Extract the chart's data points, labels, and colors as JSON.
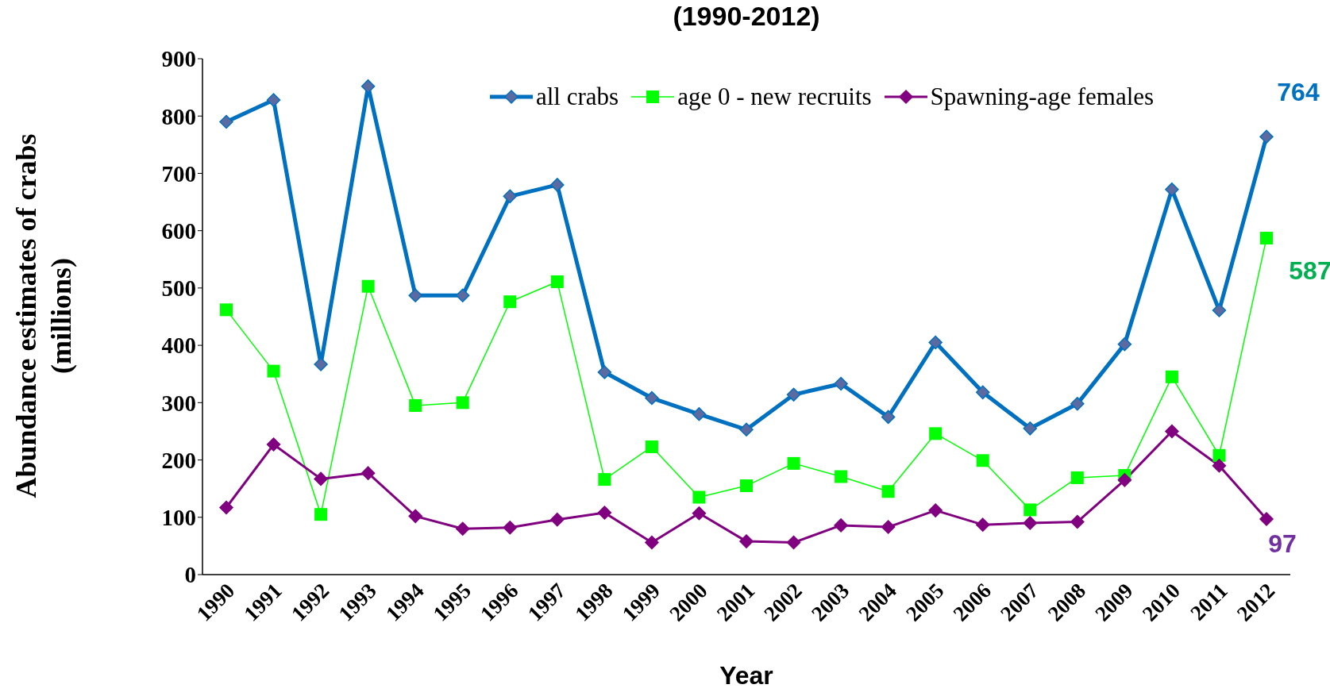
{
  "chart_data": {
    "type": "line",
    "title": "(1990-2012)",
    "xlabel": "Year",
    "ylabel": "Abundance estimates of  crabs\n(millions)",
    "categories": [
      "1990",
      "1991",
      "1992",
      "1993",
      "1994",
      "1995",
      "1996",
      "1997",
      "1998",
      "1999",
      "2000",
      "2001",
      "2002",
      "2003",
      "2004",
      "2005",
      "2006",
      "2007",
      "2008",
      "2009",
      "2010",
      "2011",
      "2012"
    ],
    "series": [
      {
        "name": "all crabs",
        "color": "#0070c0",
        "marker": "diamond",
        "values": [
          790,
          828,
          367,
          852,
          487,
          487,
          660,
          680,
          353,
          308,
          280,
          253,
          314,
          333,
          275,
          405,
          318,
          255,
          298,
          402,
          672,
          461,
          764
        ],
        "value_labels": [
          null,
          null,
          null,
          null,
          null,
          null,
          null,
          null,
          null,
          null,
          null,
          null,
          null,
          null,
          null,
          null,
          null,
          null,
          null,
          null,
          null,
          null,
          "764"
        ]
      },
      {
        "name": "age 0 - new recruits",
        "color": "#00ff00",
        "marker": "square",
        "values": [
          462,
          355,
          105,
          503,
          295,
          300,
          476,
          511,
          166,
          223,
          135,
          155,
          194,
          171,
          145,
          246,
          199,
          113,
          169,
          173,
          345,
          208,
          587
        ],
        "value_labels": [
          null,
          null,
          null,
          null,
          null,
          null,
          null,
          null,
          null,
          null,
          null,
          null,
          null,
          null,
          null,
          null,
          null,
          null,
          null,
          null,
          null,
          null,
          "587"
        ]
      },
      {
        "name": "Spawning-age females",
        "color": "#800080",
        "marker": "diamond",
        "values": [
          117,
          227,
          167,
          177,
          102,
          80,
          82,
          96,
          108,
          56,
          107,
          58,
          56,
          86,
          83,
          112,
          87,
          90,
          92,
          165,
          250,
          190,
          97
        ],
        "value_labels": [
          null,
          null,
          null,
          null,
          null,
          null,
          null,
          null,
          null,
          null,
          null,
          null,
          null,
          null,
          null,
          null,
          null,
          null,
          null,
          null,
          null,
          null,
          "97"
        ]
      }
    ],
    "ylim": [
      0,
      900
    ],
    "yticks": [
      0,
      100,
      200,
      300,
      400,
      500,
      600,
      700,
      800,
      900
    ],
    "grid": false,
    "legend": "top right"
  }
}
